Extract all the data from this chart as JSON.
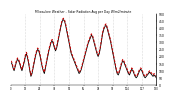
{
  "title": "Milwaukee Weather - Solar Radiation Avg per Day W/m2/minute",
  "line1_color": "#000000",
  "line2_color": "#cc0000",
  "background_color": "#ffffff",
  "grid_color": "#bbbbbb",
  "ylim": [
    0,
    500
  ],
  "ytick_labels": [
    "0",
    "50",
    "100",
    "150",
    "200",
    "250",
    "300",
    "350",
    "400",
    "450",
    "500"
  ],
  "ytick_values": [
    0,
    50,
    100,
    150,
    200,
    250,
    300,
    350,
    400,
    450,
    500
  ],
  "y_values_black": [
    160,
    150,
    120,
    100,
    130,
    160,
    180,
    170,
    150,
    120,
    100,
    130,
    160,
    200,
    220,
    190,
    150,
    100,
    60,
    80,
    120,
    160,
    200,
    230,
    250,
    240,
    210,
    170,
    130,
    100,
    80,
    120,
    160,
    200,
    240,
    270,
    300,
    310,
    290,
    260,
    240,
    260,
    300,
    340,
    380,
    420,
    450,
    460,
    450,
    420,
    380,
    340,
    300,
    260,
    220,
    200,
    180,
    160,
    140,
    120,
    100,
    80,
    90,
    110,
    140,
    170,
    200,
    230,
    260,
    290,
    310,
    330,
    350,
    340,
    310,
    280,
    250,
    220,
    200,
    220,
    260,
    310,
    360,
    390,
    410,
    420,
    400,
    370,
    340,
    310,
    270,
    230,
    190,
    150,
    110,
    80,
    70,
    90,
    120,
    150,
    170,
    160,
    140,
    120,
    100,
    80,
    70,
    90,
    110,
    100,
    80,
    60,
    50,
    60,
    80,
    100,
    110,
    100,
    80,
    60,
    50,
    60,
    70,
    80,
    90,
    80,
    70,
    60,
    70,
    60,
    50
  ],
  "y_values_red": [
    170,
    160,
    130,
    110,
    140,
    170,
    190,
    180,
    160,
    130,
    110,
    140,
    170,
    210,
    230,
    200,
    160,
    110,
    70,
    90,
    130,
    170,
    210,
    240,
    260,
    250,
    220,
    180,
    140,
    110,
    90,
    130,
    170,
    210,
    250,
    280,
    310,
    320,
    300,
    270,
    250,
    270,
    310,
    350,
    390,
    430,
    460,
    470,
    460,
    430,
    390,
    350,
    310,
    270,
    230,
    210,
    190,
    170,
    150,
    130,
    110,
    90,
    100,
    120,
    150,
    180,
    210,
    240,
    270,
    300,
    320,
    340,
    360,
    350,
    320,
    290,
    260,
    230,
    210,
    230,
    270,
    320,
    370,
    400,
    420,
    430,
    410,
    380,
    350,
    320,
    280,
    240,
    200,
    160,
    120,
    90,
    80,
    100,
    130,
    160,
    180,
    170,
    150,
    130,
    110,
    90,
    80,
    100,
    120,
    110,
    90,
    70,
    60,
    70,
    90,
    110,
    120,
    110,
    90,
    70,
    60,
    70,
    80,
    90,
    100,
    90,
    80,
    70,
    80,
    70,
    60
  ],
  "num_points": 131,
  "grid_x_positions": [
    13,
    26,
    39,
    52,
    65,
    78,
    91,
    104,
    117,
    130
  ]
}
